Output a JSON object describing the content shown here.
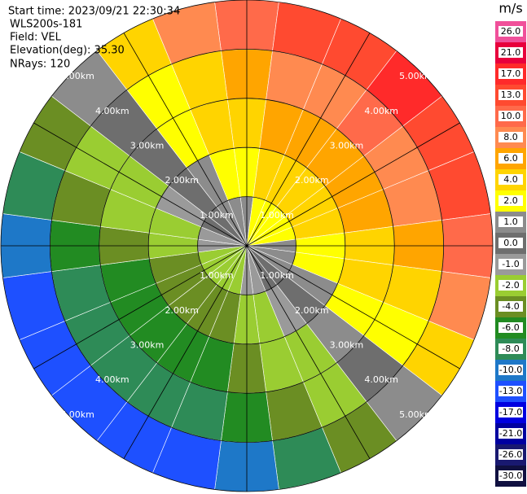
{
  "header": {
    "start_time": "Start time: 2023/09/21 22:30:34",
    "instrument": "WLS200s-181",
    "field": "Field: VEL",
    "elevation": "Elevation(deg): 35.30",
    "nrays": "NRays: 120"
  },
  "chart_data": {
    "type": "ppi",
    "rlim": [
      0,
      5
    ],
    "range_rings": [
      {
        "value": 1,
        "label": "1.00km"
      },
      {
        "value": 2,
        "label": "2.00km"
      },
      {
        "value": 3,
        "label": "3.00km"
      },
      {
        "value": 4,
        "label": "4.00km"
      },
      {
        "value": 5,
        "label": "5.00km"
      }
    ],
    "azimuths": [
      0,
      15,
      30,
      45,
      60,
      75,
      90,
      105,
      120,
      135,
      150,
      165,
      180,
      195,
      210,
      225,
      240,
      255,
      270,
      285,
      300,
      315,
      330,
      345
    ],
    "values": [
      [
        1.4,
        2.8,
        4.3,
        6.4,
        10.7
      ],
      [
        1.7,
        3.5,
        5.2,
        7.8,
        13
      ],
      [
        1.9,
        3.9,
        5.8,
        8.7,
        14.5
      ],
      [
        2,
        4,
        6,
        9,
        15
      ],
      [
        1.9,
        3.9,
        5.8,
        8.7,
        14.5
      ],
      [
        1.7,
        3.5,
        5.2,
        7.8,
        13
      ],
      [
        1.4,
        2.8,
        4.3,
        6.4,
        10.7
      ],
      [
        1,
        2,
        3,
        4.5,
        7.5
      ],
      [
        0.5,
        1,
        1.6,
        2.3,
        3.9
      ],
      [
        0.2,
        -0.3,
        0.5,
        -0.4,
        1.2
      ],
      [
        -0.5,
        -1,
        -1.6,
        -2.3,
        -3.9
      ],
      [
        -1,
        -2,
        -3,
        -4.5,
        -7.5
      ],
      [
        -1.4,
        -2.8,
        -4.3,
        -6.4,
        -10.7
      ],
      [
        -1.7,
        -3.5,
        -5.2,
        -7.8,
        -13
      ],
      [
        -1.9,
        -3.9,
        -5.8,
        -8.7,
        -14.5
      ],
      [
        -2,
        -4,
        -6,
        -9,
        -15
      ],
      [
        -1.9,
        -3.9,
        -5.8,
        -8.7,
        -14.5
      ],
      [
        -1.7,
        -3.5,
        -5.2,
        -7.8,
        -13
      ],
      [
        -1.4,
        -2.8,
        -4.3,
        -6.4,
        -10.7
      ],
      [
        -1,
        -2,
        -3,
        -4.5,
        -7.5
      ],
      [
        -0.5,
        -1,
        -1.6,
        -2.3,
        -3.9
      ],
      [
        0.3,
        -0.2,
        0.4,
        -0.5,
        1.1
      ],
      [
        0.5,
        1,
        1.6,
        2.3,
        3.9
      ],
      [
        1,
        2,
        3,
        4.5,
        7.5
      ]
    ],
    "colorbar": {
      "unit": "m/s",
      "ticks": [
        {
          "value": 26,
          "label": "26.0"
        },
        {
          "value": 21,
          "label": "21.0"
        },
        {
          "value": 17,
          "label": "17.0"
        },
        {
          "value": 13,
          "label": "13.0"
        },
        {
          "value": 10,
          "label": "10.0"
        },
        {
          "value": 8,
          "label": "8.0"
        },
        {
          "value": 6,
          "label": "6.0"
        },
        {
          "value": 4,
          "label": "4.0"
        },
        {
          "value": 2,
          "label": "2.0"
        },
        {
          "value": 1,
          "label": "1.0"
        },
        {
          "value": 0,
          "label": "0.0"
        },
        {
          "value": -1,
          "label": "-1.0"
        },
        {
          "value": -2,
          "label": "-2.0"
        },
        {
          "value": -4,
          "label": "-4.0"
        },
        {
          "value": -6,
          "label": "-6.0"
        },
        {
          "value": -8,
          "label": "-8.0"
        },
        {
          "value": -10,
          "label": "-10.0"
        },
        {
          "value": -13,
          "label": "-13.0"
        },
        {
          "value": -17,
          "label": "-17.0"
        },
        {
          "value": -21,
          "label": "-21.0"
        },
        {
          "value": -26,
          "label": "-26.0"
        },
        {
          "value": -30,
          "label": "-30.0"
        }
      ],
      "colors": [
        "#f0509a",
        "#e8003c",
        "#ff2a2a",
        "#ff4a30",
        "#ff6a4a",
        "#ff8a50",
        "#ffa500",
        "#ffd400",
        "#ffff00",
        "#8c8c8c",
        "#6e6e6e",
        "#9a9a9a",
        "#9acd32",
        "#6b8e23",
        "#228b22",
        "#2e8b57",
        "#1e78c8",
        "#1e50ff",
        "#0000e0",
        "#0000a0",
        "#191970",
        "#101040"
      ]
    }
  }
}
